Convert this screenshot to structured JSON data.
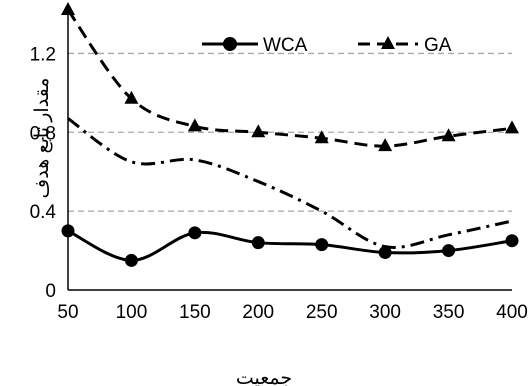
{
  "chart_data": {
    "type": "line",
    "xlabel": "جمعیت",
    "ylabel": "مقدار تابع هدف",
    "x": [
      50,
      100,
      150,
      200,
      250,
      300,
      350,
      400
    ],
    "xlim": [
      50,
      400
    ],
    "ylim": [
      0,
      1.4
    ],
    "y_ticks": [
      "0",
      "0.4",
      "0.8",
      "1.2"
    ],
    "x_ticks": [
      "50",
      "100",
      "150",
      "200",
      "250",
      "300",
      "350",
      "400"
    ],
    "grid": "horizontal dashed",
    "legend_position": "top-right",
    "series": [
      {
        "name": "WCA",
        "values": [
          0.3,
          0.15,
          0.29,
          0.24,
          0.23,
          0.19,
          0.2,
          0.25
        ],
        "style": "solid",
        "marker": "circle",
        "color": "#000000"
      },
      {
        "name": "GA",
        "values": [
          1.42,
          0.97,
          0.83,
          0.8,
          0.77,
          0.73,
          0.78,
          0.82
        ],
        "style": "dashed",
        "marker": "triangle",
        "color": "#000000"
      },
      {
        "values": [
          0.87,
          0.65,
          0.66,
          0.55,
          0.4,
          0.22,
          0.28,
          0.35
        ],
        "style": "dash-dot",
        "marker": "none",
        "color": "#000000"
      }
    ]
  }
}
